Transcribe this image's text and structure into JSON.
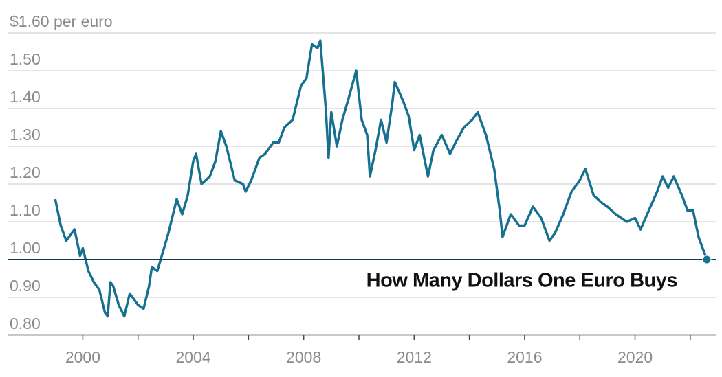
{
  "chart_data": {
    "type": "line",
    "title": "How Many Dollars One Euro Buys",
    "color": "#16708f",
    "x": [
      1999.0,
      1999.2,
      1999.4,
      1999.6,
      1999.7,
      1999.9,
      2000.0,
      2000.2,
      2000.4,
      2000.6,
      2000.7,
      2000.8,
      2000.9,
      2001.0,
      2001.1,
      2001.3,
      2001.5,
      2001.7,
      2001.9,
      2002.0,
      2002.2,
      2002.4,
      2002.5,
      2002.7,
      2002.9,
      2003.1,
      2003.4,
      2003.6,
      2003.8,
      2004.0,
      2004.1,
      2004.3,
      2004.6,
      2004.8,
      2005.0,
      2005.2,
      2005.5,
      2005.8,
      2005.9,
      2006.1,
      2006.4,
      2006.6,
      2006.9,
      2007.1,
      2007.3,
      2007.6,
      2007.9,
      2008.1,
      2008.3,
      2008.5,
      2008.6,
      2008.8,
      2008.9,
      2009.0,
      2009.2,
      2009.4,
      2009.6,
      2009.9,
      2010.1,
      2010.3,
      2010.4,
      2010.6,
      2010.8,
      2011.0,
      2011.2,
      2011.3,
      2011.6,
      2011.8,
      2012.0,
      2012.2,
      2012.5,
      2012.7,
      2013.0,
      2013.3,
      2013.5,
      2013.8,
      2014.1,
      2014.3,
      2014.6,
      2014.9,
      2015.1,
      2015.2,
      2015.5,
      2015.8,
      2016.0,
      2016.3,
      2016.6,
      2016.9,
      2017.1,
      2017.4,
      2017.7,
      2018.0,
      2018.2,
      2018.5,
      2018.8,
      2019.0,
      2019.3,
      2019.7,
      2020.0,
      2020.2,
      2020.5,
      2020.8,
      2021.0,
      2021.2,
      2021.4,
      2021.7,
      2021.9,
      2022.1,
      2022.3,
      2022.5,
      2022.6
    ],
    "values": [
      1.16,
      1.09,
      1.05,
      1.07,
      1.08,
      1.01,
      1.03,
      0.97,
      0.94,
      0.92,
      0.89,
      0.86,
      0.85,
      0.94,
      0.93,
      0.88,
      0.85,
      0.91,
      0.89,
      0.88,
      0.87,
      0.93,
      0.98,
      0.97,
      1.02,
      1.07,
      1.16,
      1.12,
      1.17,
      1.26,
      1.28,
      1.2,
      1.22,
      1.26,
      1.34,
      1.3,
      1.21,
      1.2,
      1.18,
      1.21,
      1.27,
      1.28,
      1.31,
      1.31,
      1.35,
      1.37,
      1.46,
      1.48,
      1.57,
      1.56,
      1.58,
      1.4,
      1.27,
      1.39,
      1.3,
      1.37,
      1.42,
      1.5,
      1.37,
      1.33,
      1.22,
      1.29,
      1.37,
      1.31,
      1.41,
      1.47,
      1.42,
      1.38,
      1.29,
      1.33,
      1.22,
      1.29,
      1.33,
      1.28,
      1.31,
      1.35,
      1.37,
      1.39,
      1.33,
      1.24,
      1.13,
      1.06,
      1.12,
      1.09,
      1.09,
      1.14,
      1.11,
      1.05,
      1.07,
      1.12,
      1.18,
      1.21,
      1.24,
      1.17,
      1.15,
      1.14,
      1.12,
      1.1,
      1.11,
      1.08,
      1.13,
      1.18,
      1.22,
      1.19,
      1.22,
      1.17,
      1.13,
      1.13,
      1.06,
      1.02,
      1.0
    ],
    "xlim": [
      1997.3,
      2022.95
    ],
    "xticks": [
      2000,
      {
        "value": 2002,
        "label": null
      },
      2004,
      {
        "value": 2006,
        "label": null
      },
      2008,
      {
        "value": 2010,
        "label": null
      },
      2012,
      {
        "value": 2014,
        "label": null
      },
      2016,
      {
        "value": 2018,
        "label": null
      },
      2020,
      {
        "value": 2022,
        "label": null
      }
    ],
    "ylim": [
      0.8,
      1.6
    ],
    "yticks": [
      {
        "value": 0.8,
        "label": "0.80"
      },
      {
        "value": 0.9,
        "label": "0.90"
      },
      {
        "value": 1.0,
        "label": "1.00"
      },
      {
        "value": 1.1,
        "label": "1.10"
      },
      {
        "value": 1.2,
        "label": "1.20"
      },
      {
        "value": 1.3,
        "label": "1.30"
      },
      {
        "value": 1.4,
        "label": "1.40"
      },
      {
        "value": 1.5,
        "label": "1.50"
      },
      {
        "value": 1.6,
        "label": "$1.60 per euro"
      }
    ],
    "reference_line": 1.0,
    "grid": true
  }
}
